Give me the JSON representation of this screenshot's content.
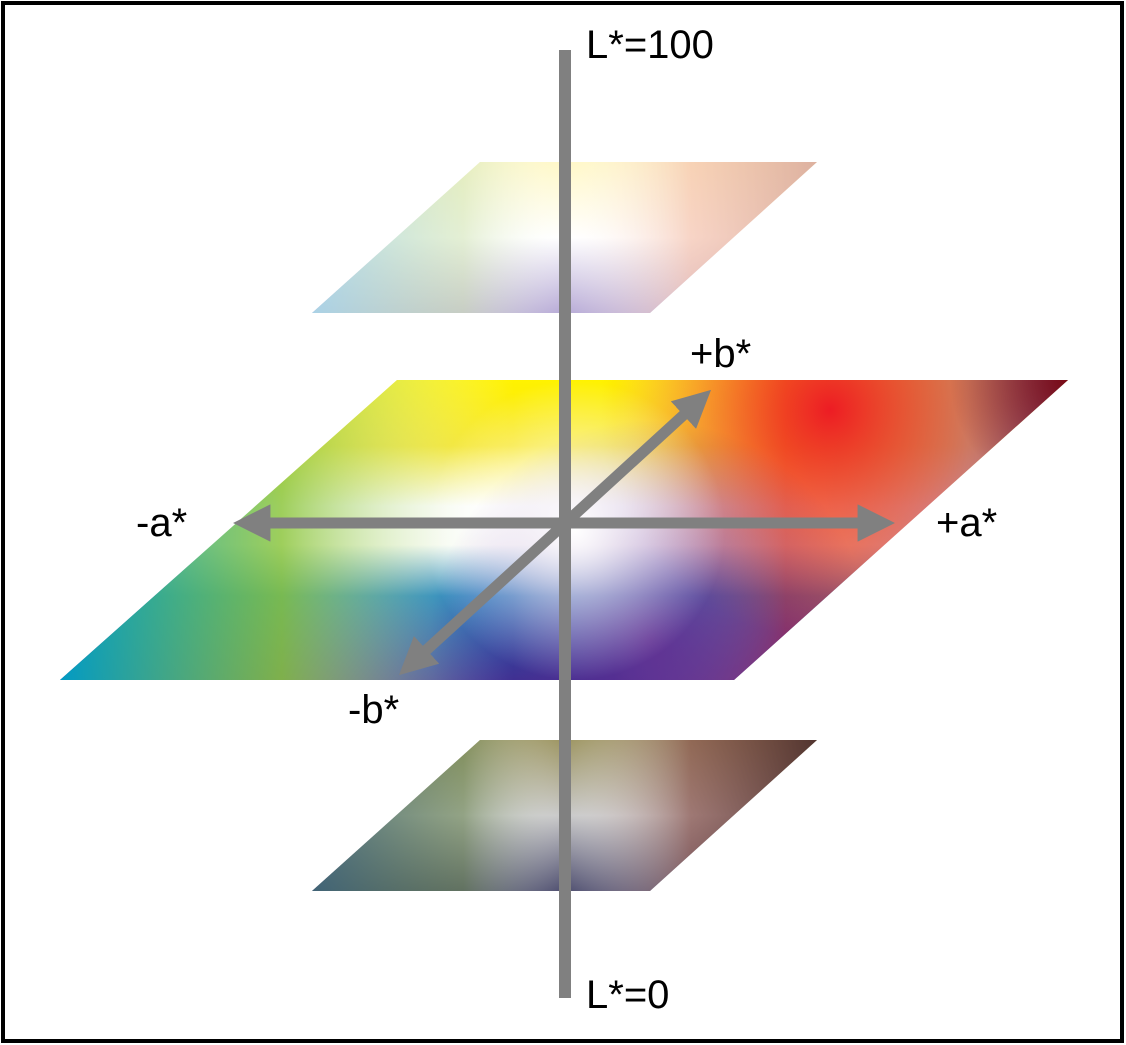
{
  "diagram": {
    "labels": {
      "l_top": "L*=100",
      "l_bottom": "L*=0",
      "plus_b": "+b*",
      "minus_b": "-b*",
      "plus_a": "+a*",
      "minus_a": "-a*"
    },
    "colors": {
      "frame": "#000000",
      "axis": "#808080",
      "yellow": "#fff200",
      "red": "#ed1c24",
      "dark_red": "#7a0a12",
      "green": "#8dc63f",
      "cyan": "#00a0c6",
      "blue": "#0072bc",
      "purple": "#662d91",
      "violet": "#9b5fb5",
      "indigo": "#2e3192"
    }
  }
}
